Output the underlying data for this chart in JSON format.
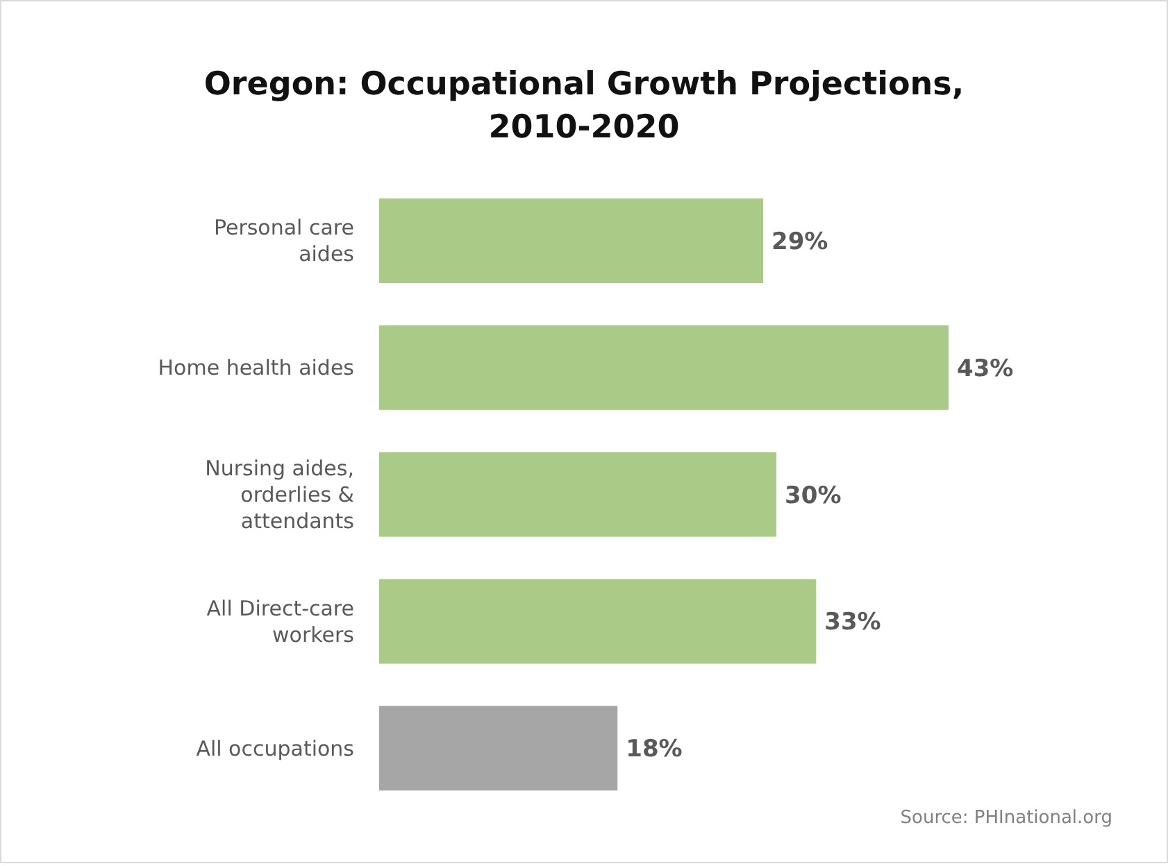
{
  "chart_data": {
    "type": "bar",
    "orientation": "horizontal",
    "title": "Oregon: Occupational Growth Projections, 2010-2020",
    "categories": [
      "Personal care aides",
      "Home health aides",
      "Nursing aides, orderlies & attendants",
      "All Direct-care workers",
      "All occupations"
    ],
    "values": [
      29,
      43,
      30,
      33,
      18
    ],
    "colors": [
      "#a9cb87",
      "#a9cb87",
      "#a9cb87",
      "#a9cb87",
      "#a6a6a6"
    ],
    "value_labels": [
      "29%",
      "43%",
      "30%",
      "33%",
      "18%"
    ],
    "annotations": [
      "Source: PHInational.org"
    ]
  }
}
